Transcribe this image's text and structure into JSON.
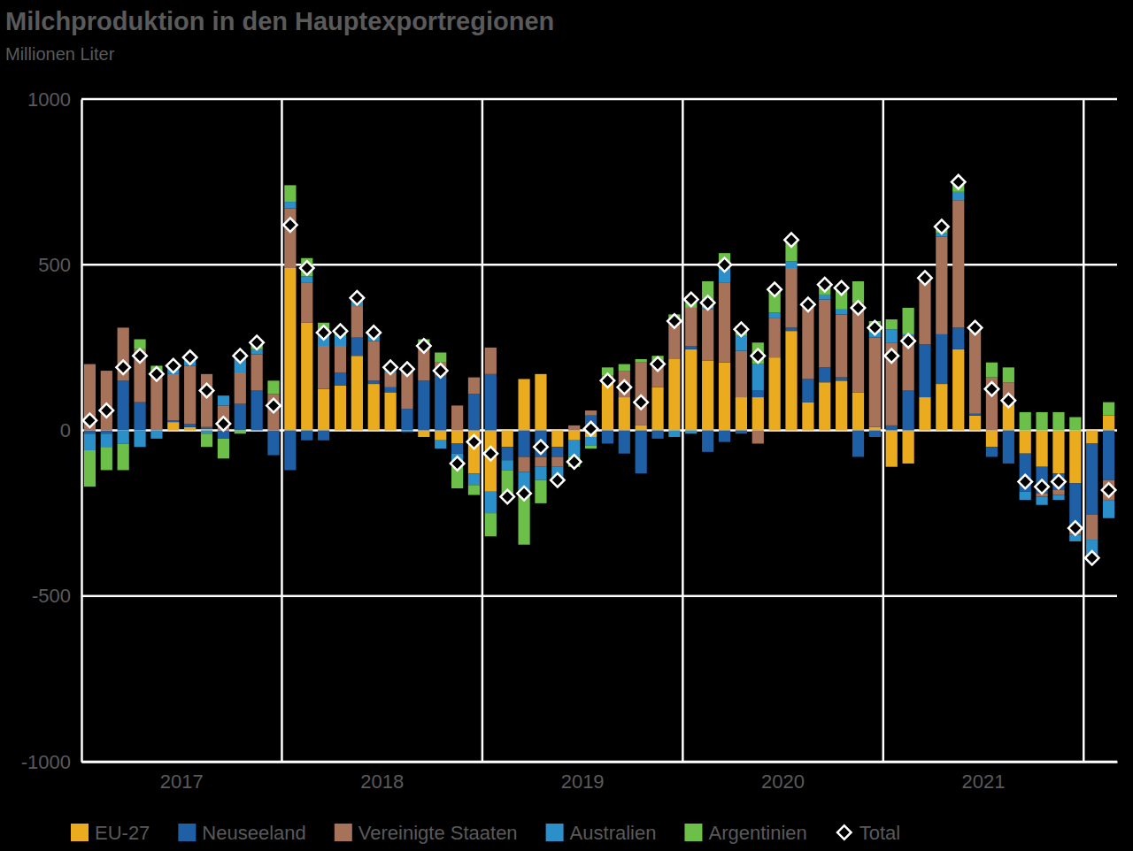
{
  "chart_data": {
    "type": "bar",
    "title": "Milchproduktion in den Hauptexportregionen",
    "subtitle": "Millionen Liter",
    "categories": [
      null,
      null,
      null,
      null,
      null,
      "2017",
      null,
      null,
      null,
      null,
      null,
      null,
      null,
      null,
      null,
      null,
      null,
      "2018",
      null,
      null,
      null,
      null,
      null,
      null,
      null,
      null,
      null,
      null,
      null,
      "2019",
      null,
      null,
      null,
      null,
      null,
      null,
      null,
      null,
      null,
      null,
      null,
      "2020",
      null,
      null,
      null,
      null,
      null,
      null,
      null,
      null,
      null,
      null,
      null,
      "2021",
      null,
      null,
      null,
      null,
      null,
      null,
      null,
      null
    ],
    "series": [
      {
        "name": "EU-27",
        "color": "#eaab1f",
        "type": "bar",
        "values": [
          0,
          0,
          0,
          0,
          0,
          25,
          10,
          5,
          0,
          0,
          0,
          0,
          490,
          325,
          125,
          135,
          225,
          140,
          115,
          0,
          -20,
          -30,
          -40,
          -130,
          -185,
          -50,
          155,
          170,
          -50,
          -30,
          -20,
          145,
          100,
          15,
          130,
          215,
          245,
          210,
          205,
          100,
          100,
          220,
          300,
          85,
          145,
          150,
          115,
          10,
          -110,
          -100,
          100,
          140,
          245,
          45,
          -50,
          85,
          -70,
          -110,
          -130,
          -160,
          -40,
          45
        ]
      },
      {
        "name": "Neuseeland",
        "color": "#1f5fa6",
        "type": "bar",
        "values": [
          -10,
          -10,
          150,
          85,
          0,
          5,
          10,
          5,
          -25,
          80,
          120,
          -75,
          -120,
          -30,
          -30,
          40,
          55,
          10,
          15,
          65,
          150,
          165,
          -30,
          110,
          170,
          -40,
          -80,
          -80,
          -30,
          0,
          45,
          -40,
          -70,
          -130,
          -25,
          0,
          10,
          -65,
          -35,
          -10,
          20,
          0,
          10,
          70,
          45,
          10,
          -80,
          -20,
          15,
          120,
          160,
          150,
          65,
          5,
          -30,
          -100,
          -115,
          -80,
          -50,
          -140,
          -215,
          -150
        ]
      },
      {
        "name": "Vereinigte Staaten",
        "color": "#a6735a",
        "type": "bar",
        "values": [
          200,
          180,
          160,
          160,
          175,
          140,
          175,
          160,
          75,
          95,
          110,
          110,
          180,
          120,
          130,
          80,
          95,
          120,
          45,
          110,
          100,
          40,
          75,
          50,
          80,
          0,
          -45,
          -30,
          -30,
          15,
          15,
          20,
          80,
          190,
          75,
          110,
          115,
          155,
          240,
          140,
          -40,
          120,
          180,
          220,
          205,
          190,
          270,
          270,
          250,
          165,
          190,
          295,
          385,
          250,
          160,
          60,
          0,
          -10,
          -15,
          -15,
          -75,
          -60
        ]
      },
      {
        "name": "Australien",
        "color": "#2b8fc9",
        "type": "bar",
        "values": [
          -50,
          -40,
          -40,
          -50,
          -25,
          15,
          20,
          -10,
          30,
          60,
          15,
          0,
          20,
          20,
          30,
          30,
          15,
          15,
          5,
          -5,
          0,
          -25,
          -40,
          -35,
          -65,
          -30,
          -70,
          -40,
          -30,
          -50,
          -25,
          0,
          0,
          0,
          0,
          -20,
          -10,
          5,
          45,
          45,
          80,
          15,
          20,
          0,
          15,
          15,
          0,
          15,
          40,
          5,
          0,
          10,
          25,
          5,
          0,
          0,
          -25,
          -25,
          -15,
          -20,
          -55,
          -55
        ]
      },
      {
        "name": "Argentinien",
        "color": "#6cc04a",
        "type": "bar",
        "values": [
          -110,
          -70,
          -80,
          30,
          20,
          10,
          5,
          -40,
          -60,
          -10,
          20,
          40,
          50,
          55,
          40,
          15,
          10,
          10,
          10,
          15,
          25,
          30,
          -65,
          -30,
          -70,
          -80,
          -150,
          -70,
          -10,
          -30,
          -10,
          25,
          20,
          10,
          20,
          25,
          35,
          80,
          45,
          30,
          65,
          70,
          65,
          5,
          30,
          65,
          65,
          35,
          30,
          80,
          10,
          20,
          30,
          5,
          45,
          45,
          55,
          55,
          55,
          40,
          0,
          40
        ]
      },
      {
        "name": "Total",
        "color": "#ffffff",
        "type": "scatter",
        "marker": "diamond",
        "values": [
          30,
          60,
          190,
          225,
          170,
          195,
          220,
          120,
          20,
          225,
          265,
          75,
          620,
          490,
          295,
          300,
          400,
          295,
          190,
          185,
          255,
          180,
          -100,
          -35,
          -70,
          -200,
          -190,
          -50,
          -150,
          -95,
          5,
          150,
          130,
          85,
          200,
          330,
          395,
          385,
          500,
          305,
          225,
          425,
          575,
          380,
          440,
          430,
          370,
          310,
          225,
          270,
          460,
          615,
          750,
          310,
          125,
          90,
          -155,
          -170,
          -155,
          -295,
          -385,
          -180
        ]
      }
    ],
    "ylim": [
      -1000,
      1000
    ],
    "yticks": [
      -1000,
      -500,
      0,
      500,
      1000
    ],
    "stacked": true,
    "grid": true,
    "legend": "bottom"
  }
}
